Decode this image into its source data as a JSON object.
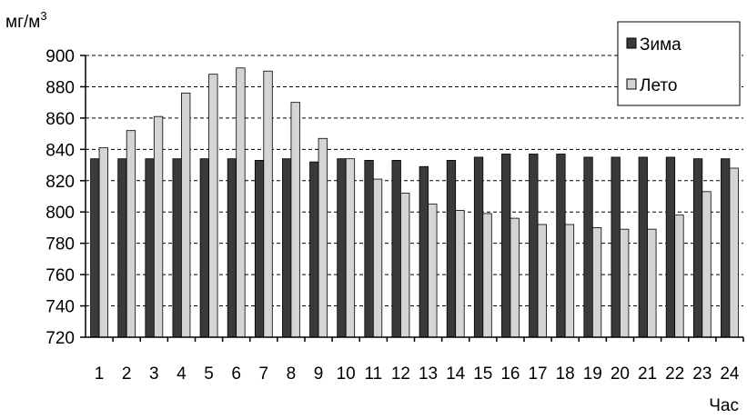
{
  "chart_data": {
    "type": "bar",
    "ylabel": "мг/м",
    "ylabel_superscript": "3",
    "xlabel": "Час",
    "ylim": [
      720,
      900
    ],
    "yticks": [
      "900",
      "880",
      "860",
      "840",
      "820",
      "800",
      "780",
      "760",
      "740",
      "720"
    ],
    "grid": "horizontal dashed",
    "legend_position": "top-right",
    "categories": [
      "1",
      "2",
      "3",
      "4",
      "5",
      "6",
      "7",
      "8",
      "9",
      "10",
      "11",
      "12",
      "13",
      "14",
      "15",
      "16",
      "17",
      "18",
      "19",
      "20",
      "21",
      "22",
      "23",
      "24"
    ],
    "series": [
      {
        "name": "Зима",
        "color": "#3a3a3a",
        "values": [
          834,
          834,
          834,
          834,
          834,
          834,
          833,
          834,
          832,
          834,
          833,
          833,
          829,
          833,
          835,
          837,
          837,
          837,
          835,
          835,
          835,
          835,
          834,
          834
        ]
      },
      {
        "name": "Лето",
        "color": "#d4d4d4",
        "values": [
          841,
          852,
          861,
          876,
          888,
          892,
          890,
          870,
          847,
          834,
          821,
          812,
          805,
          801,
          799,
          796,
          792,
          792,
          790,
          789,
          789,
          798,
          813,
          828
        ]
      }
    ]
  }
}
